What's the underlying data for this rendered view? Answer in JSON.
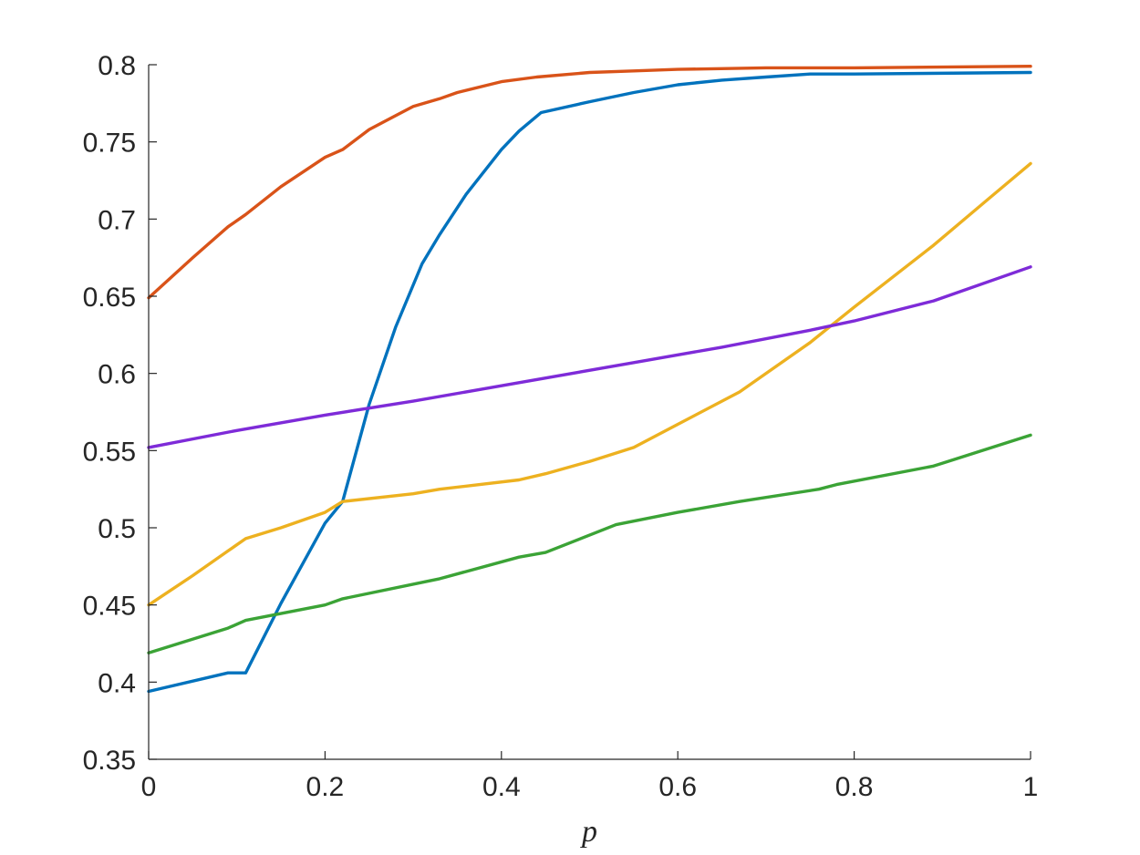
{
  "chart_data": {
    "type": "line",
    "xlabel": "p",
    "ylabel": "",
    "title": "",
    "xlim": [
      0,
      1
    ],
    "ylim": [
      0.35,
      0.8
    ],
    "xticks": [
      0,
      0.2,
      0.4,
      0.6,
      0.8,
      1
    ],
    "xtick_labels": [
      "0",
      "0.2",
      "0.4",
      "0.6",
      "0.8",
      "1"
    ],
    "yticks": [
      0.35,
      0.4,
      0.45,
      0.5,
      0.55,
      0.6,
      0.65,
      0.7,
      0.75,
      0.8
    ],
    "ytick_labels": [
      "0.35",
      "0.4",
      "0.45",
      "0.5",
      "0.55",
      "0.6",
      "0.65",
      "0.7",
      "0.75",
      "0.8"
    ],
    "grid": false,
    "legend": "none",
    "series": [
      {
        "color": "#D95319",
        "x": [
          0,
          0.05,
          0.09,
          0.11,
          0.15,
          0.2,
          0.22,
          0.25,
          0.3,
          0.33,
          0.35,
          0.4,
          0.44,
          0.5,
          0.55,
          0.6,
          0.7,
          0.8,
          1
        ],
        "y": [
          0.649,
          0.675,
          0.695,
          0.703,
          0.721,
          0.74,
          0.745,
          0.758,
          0.773,
          0.778,
          0.782,
          0.789,
          0.792,
          0.795,
          0.796,
          0.797,
          0.798,
          0.798,
          0.799
        ]
      },
      {
        "color": "#0072BD",
        "x": [
          0,
          0.09,
          0.11,
          0.15,
          0.2,
          0.22,
          0.25,
          0.28,
          0.31,
          0.33,
          0.36,
          0.4,
          0.42,
          0.445,
          0.5,
          0.55,
          0.6,
          0.65,
          0.7,
          0.75,
          0.8,
          1
        ],
        "y": [
          0.394,
          0.406,
          0.406,
          0.451,
          0.503,
          0.517,
          0.58,
          0.63,
          0.671,
          0.69,
          0.716,
          0.745,
          0.757,
          0.769,
          0.776,
          0.782,
          0.787,
          0.79,
          0.792,
          0.794,
          0.794,
          0.795
        ]
      },
      {
        "color": "#EDB120",
        "x": [
          0,
          0.05,
          0.09,
          0.11,
          0.15,
          0.2,
          0.22,
          0.3,
          0.33,
          0.42,
          0.45,
          0.5,
          0.55,
          0.6,
          0.67,
          0.75,
          0.8,
          0.89,
          0.95,
          1
        ],
        "y": [
          0.45,
          0.469,
          0.485,
          0.493,
          0.5,
          0.51,
          0.517,
          0.522,
          0.525,
          0.531,
          0.535,
          0.543,
          0.552,
          0.567,
          0.588,
          0.62,
          0.643,
          0.683,
          0.712,
          0.736
        ]
      },
      {
        "color": "#7E2BD8",
        "x": [
          0,
          0.1,
          0.2,
          0.3,
          0.4,
          0.55,
          0.65,
          0.75,
          0.8,
          0.89,
          1
        ],
        "y": [
          0.552,
          0.563,
          0.573,
          0.582,
          0.592,
          0.607,
          0.617,
          0.628,
          0.634,
          0.647,
          0.669
        ]
      },
      {
        "color": "#3BA336",
        "x": [
          0,
          0.09,
          0.11,
          0.2,
          0.22,
          0.33,
          0.42,
          0.45,
          0.53,
          0.6,
          0.67,
          0.76,
          0.78,
          0.89,
          1
        ],
        "y": [
          0.419,
          0.435,
          0.44,
          0.45,
          0.454,
          0.467,
          0.481,
          0.484,
          0.502,
          0.51,
          0.517,
          0.525,
          0.528,
          0.54,
          0.56
        ]
      }
    ]
  }
}
